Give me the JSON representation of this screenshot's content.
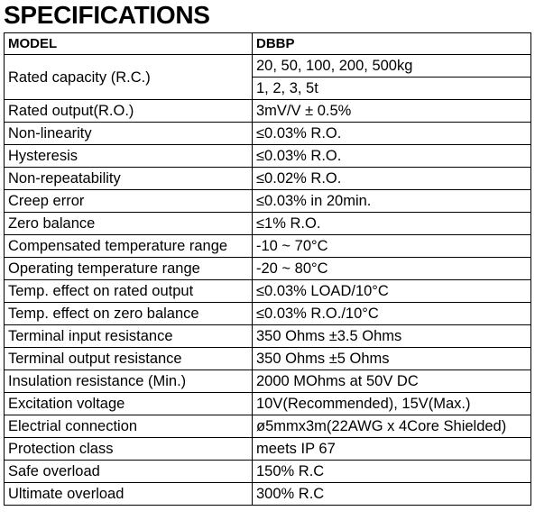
{
  "header": {
    "title": "SPECIFICATIONS"
  },
  "table": {
    "header": [
      "MODEL",
      "DBBP"
    ],
    "rows": [
      [
        "Rated capacity (R.C.)",
        "20, 50, 100, 200, 500kg",
        "1, 2, 3, 5t"
      ],
      [
        "Rated output(R.O.)",
        "3mV/V ± 0.5%"
      ],
      [
        "Non-linearity",
        "≤0.03% R.O."
      ],
      [
        "Hysteresis",
        "≤0.03% R.O."
      ],
      [
        "Non-repeatability",
        "≤0.02% R.O."
      ],
      [
        "Creep error",
        "≤0.03% in 20min."
      ],
      [
        "Zero balance",
        "≤1% R.O."
      ],
      [
        "Compensated temperature range",
        "-10 ~ 70°C"
      ],
      [
        "Operating temperature range",
        "-20 ~ 80°C"
      ],
      [
        "Temp. effect on rated output",
        "≤0.03% LOAD/10°C"
      ],
      [
        "Temp. effect on zero balance",
        "≤0.03% R.O./10°C"
      ],
      [
        "Terminal input resistance",
        "350 Ohms ±3.5 Ohms"
      ],
      [
        "Terminal output resistance",
        "350 Ohms ±5 Ohms"
      ],
      [
        "Insulation resistance (Min.)",
        "2000 MOhms at 50V DC"
      ],
      [
        "Excitation voltage",
        "10V(Recommended), 15V(Max.)"
      ],
      [
        "Electrial connection",
        "ø5mmx3m(22AWG x 4Core Shielded)"
      ],
      [
        "Protection class",
        "meets IP 67"
      ],
      [
        "Safe overload",
        "150% R.C"
      ],
      [
        "Ultimate overload",
        "300% R.C"
      ]
    ]
  }
}
